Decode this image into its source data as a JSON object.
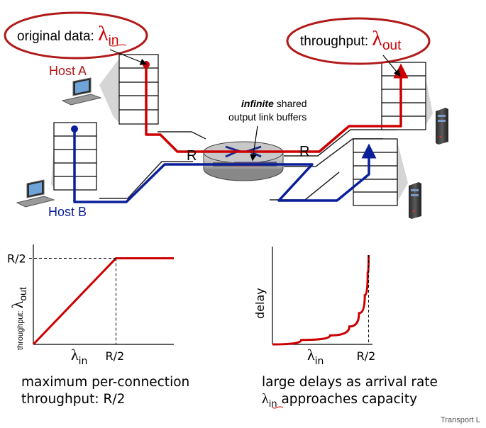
{
  "top": {
    "in_bubble": {
      "prefix": "original data: ",
      "symbol": "λ",
      "sub": "in"
    },
    "out_bubble": {
      "prefix": "throughput: ",
      "symbol": "λ",
      "sub": "out"
    },
    "host_a": "Host A",
    "host_b": "Host B",
    "router_note_bold": "infinite",
    "router_note_rest": " shared",
    "router_note_line2": "output link buffers",
    "link_left": "R",
    "link_right": "R"
  },
  "captions": {
    "left_line1": "maximum per-connection",
    "left_line2": "throughput: R/2",
    "right_line1": "large delays as arrival rate",
    "right_sym": "λ",
    "right_sub": "in",
    "right_rest": " approaches capacity"
  },
  "footer": "Transport L",
  "colors": {
    "red": "#cc0000",
    "blue": "#0a1f99",
    "bubble": "#b11a1a"
  },
  "chart_data": [
    {
      "type": "line",
      "xlabel": "λin",
      "ylabel": "throughput: λout",
      "xticks": [
        "R/2"
      ],
      "yticks": [
        "R/2"
      ],
      "xlim": [
        0,
        0.85
      ],
      "ylim": [
        0,
        0.58
      ],
      "series": [
        {
          "x": [
            0,
            0.5,
            0.85
          ],
          "y": [
            0,
            0.5,
            0.5
          ]
        }
      ]
    },
    {
      "type": "line",
      "xlabel": "λin",
      "ylabel": "delay",
      "xticks": [
        "R/2"
      ],
      "xlim": [
        0,
        0.52
      ],
      "ylim": [
        0,
        1
      ],
      "series": [
        {
          "x": [
            0,
            0.15,
            0.3,
            0.4,
            0.45,
            0.48,
            0.495,
            0.5
          ],
          "y": [
            0,
            0.05,
            0.1,
            0.2,
            0.35,
            0.55,
            0.8,
            1.0
          ]
        }
      ]
    }
  ]
}
